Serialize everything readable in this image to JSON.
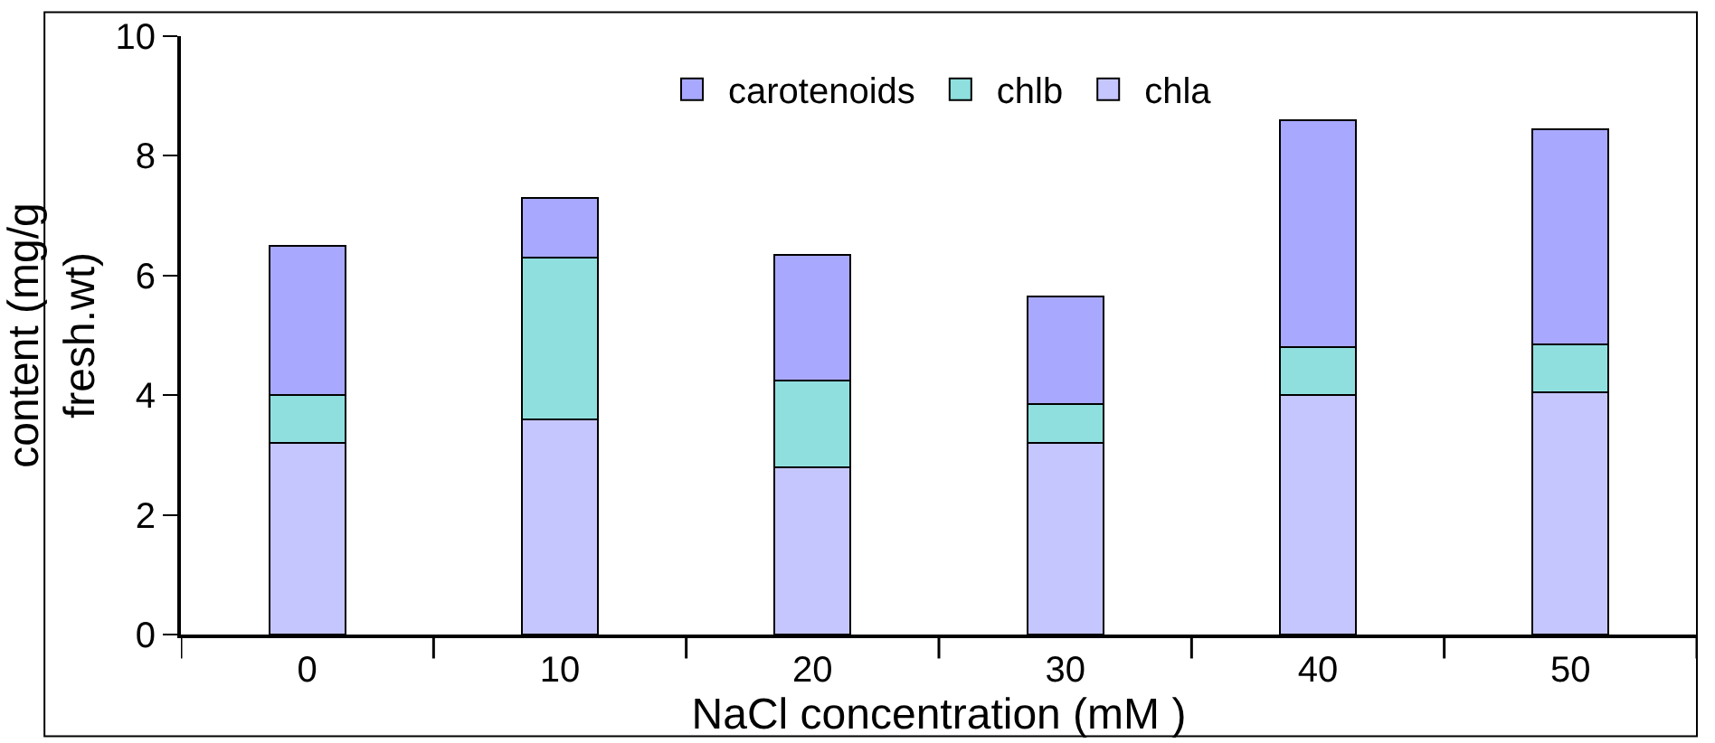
{
  "chart_data": {
    "type": "bar",
    "stacked": true,
    "xlabel": "NaCl concentration (mM )",
    "ylabel": "content (mg/g\nfresh.wt)",
    "categories": [
      "0",
      "10",
      "20",
      "30",
      "40",
      "50"
    ],
    "series": [
      {
        "name": "chla",
        "color": "#c6c6ff",
        "values": [
          3.2,
          3.6,
          2.8,
          3.2,
          4.0,
          4.05
        ]
      },
      {
        "name": "chlb",
        "color": "#8fdfdf",
        "values": [
          0.8,
          2.7,
          1.45,
          0.65,
          0.8,
          0.8
        ]
      },
      {
        "name": "carotenoids",
        "color": "#a8a8ff",
        "values": [
          2.5,
          1.0,
          2.1,
          1.8,
          3.8,
          3.6
        ]
      }
    ],
    "ylim": [
      0,
      10
    ],
    "yticks": [
      0,
      2,
      4,
      6,
      8,
      10
    ],
    "grid": false,
    "legend": "top"
  }
}
